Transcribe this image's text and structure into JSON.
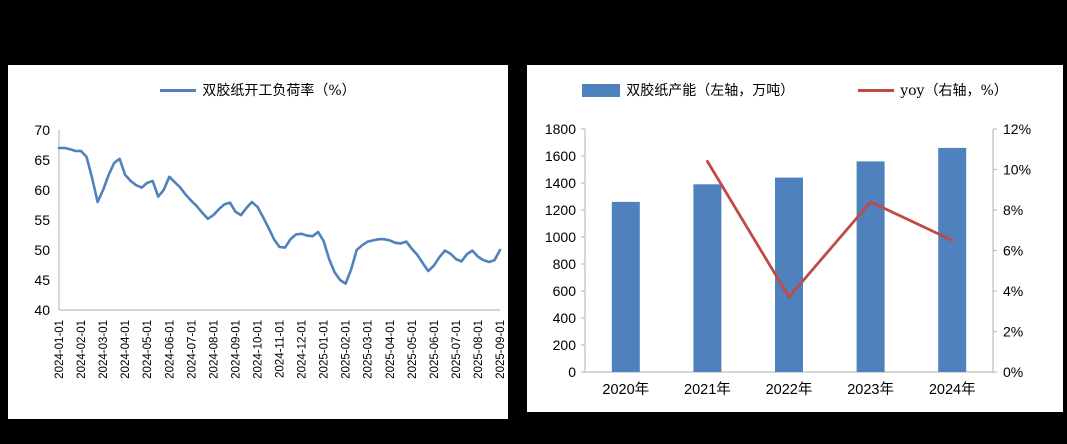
{
  "colors": {
    "background": "#000000",
    "panel": "#ffffff",
    "axis": "#BFBFBF",
    "blue": "#4F81BD",
    "red": "#BE4B48"
  },
  "chart_data": [
    {
      "type": "line",
      "title": "",
      "legend_position": "top-center",
      "ylabel": "",
      "xlabel": "",
      "ylim": [
        40,
        70
      ],
      "ytick_step": 5,
      "y_tick_labels": [
        "40",
        "45",
        "50",
        "55",
        "60",
        "65",
        "70"
      ],
      "grid": false,
      "x_tick_labels": [
        "2024-01-01",
        "2024-02-01",
        "2024-03-01",
        "2024-04-01",
        "2024-05-01",
        "2024-06-01",
        "2024-07-01",
        "2024-08-01",
        "2024-09-01",
        "2024-10-01",
        "2024-11-01",
        "2024-12-01",
        "2025-01-01",
        "2025-02-01",
        "2025-03-01",
        "2025-04-01",
        "2025-05-01",
        "2025-06-01",
        "2025-07-01",
        "2025-08-01",
        "2025-09-01"
      ],
      "points_per_tick": 4,
      "series": [
        {
          "name": "双胶纸开工负荷率（%）",
          "color": "#4F81BD",
          "values": [
            67.0,
            67.0,
            66.8,
            66.5,
            66.5,
            65.5,
            62.0,
            58.0,
            60.0,
            62.5,
            64.5,
            65.2,
            62.5,
            61.5,
            60.8,
            60.4,
            61.2,
            61.5,
            58.9,
            60.0,
            62.2,
            61.3,
            60.4,
            59.2,
            58.2,
            57.3,
            56.2,
            55.2,
            55.8,
            56.8,
            57.6,
            57.9,
            56.4,
            55.8,
            57.0,
            58.0,
            57.2,
            55.5,
            53.7,
            51.8,
            50.5,
            50.4,
            51.8,
            52.6,
            52.7,
            52.4,
            52.3,
            53.0,
            51.5,
            48.5,
            46.3,
            45.0,
            44.4,
            46.8,
            50.0,
            50.8,
            51.4,
            51.6,
            51.8,
            51.8,
            51.6,
            51.2,
            51.1,
            51.4,
            50.2,
            49.2,
            47.8,
            46.5,
            47.4,
            48.8,
            49.9,
            49.4,
            48.5,
            48.1,
            49.3,
            49.9,
            48.9,
            48.3,
            48.0,
            48.3,
            50.0
          ]
        }
      ]
    },
    {
      "type": "bar+line",
      "title": "",
      "legend_position": "top-center",
      "categories": [
        "2020年",
        "2021年",
        "2022年",
        "2023年",
        "2024年"
      ],
      "left_ylim": [
        0,
        1800
      ],
      "left_ytick_step": 200,
      "left_y_tick_labels": [
        "0",
        "200",
        "400",
        "600",
        "800",
        "1000",
        "1200",
        "1400",
        "1600",
        "1800"
      ],
      "right_ylim": [
        0,
        12
      ],
      "right_ytick_step": 2,
      "right_y_tick_labels": [
        "0%",
        "2%",
        "4%",
        "6%",
        "8%",
        "10%",
        "12%"
      ],
      "grid": false,
      "series": [
        {
          "name": "双胶纸产能（左轴，万吨）",
          "type": "bar",
          "axis": "left",
          "color": "#4F81BD",
          "values": [
            1260,
            1390,
            1440,
            1560,
            1660
          ]
        },
        {
          "name": "yoy（右轴，%）",
          "type": "line",
          "axis": "right",
          "color": "#BE4B48",
          "values": [
            null,
            10.4,
            3.7,
            8.4,
            6.5
          ]
        }
      ]
    }
  ]
}
